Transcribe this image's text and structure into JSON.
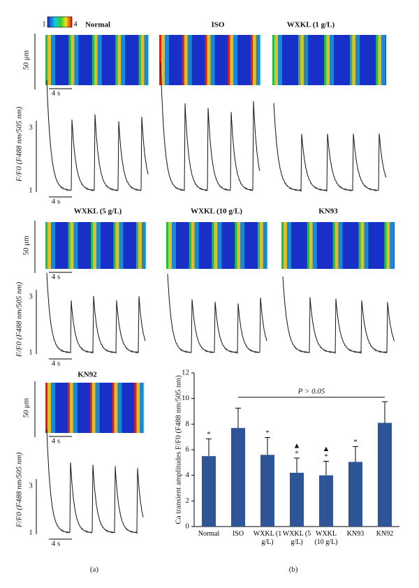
{
  "panel_a": {
    "label": "(a)",
    "colorbar": {
      "min": "1",
      "max": "4"
    },
    "scale_length": "50 μm",
    "scale_time": "4 s",
    "trace_y_label": "F/F0 (F488 nm/505 nm)",
    "trace_ticks": [
      "3",
      "1"
    ],
    "groups": [
      {
        "title": "Normal"
      },
      {
        "title": "ISO"
      },
      {
        "title": "WXKL (1 g/L)"
      },
      {
        "title": "WXKL (5 g/L)"
      },
      {
        "title": "WXKL (10 g/L)"
      },
      {
        "title": "KN93"
      },
      {
        "title": "KN92"
      }
    ]
  },
  "chart_data": {
    "type": "bar",
    "label": "(b)",
    "y_label": "Ca transient amplitudes F/F0 (F488 nm/505 nm)",
    "categories": [
      "Normal",
      "ISO",
      "WXKL (1 g/L)",
      "WXKL (5 g/L)",
      "WXKL (10 g/L)",
      "KN93",
      "KN92"
    ],
    "values": [
      5.5,
      7.7,
      5.6,
      4.2,
      4.0,
      5.05,
      8.1
    ],
    "errors": [
      1.35,
      1.55,
      1.35,
      1.15,
      1.1,
      1.2,
      1.65
    ],
    "symbols": [
      [
        "*"
      ],
      [],
      [
        "*"
      ],
      [
        "▲",
        "*"
      ],
      [
        "▲",
        "*"
      ],
      [
        "*"
      ],
      []
    ],
    "annotation": "P > 0.05",
    "color": "#2e5597",
    "ylim": [
      0,
      12
    ],
    "yticks": [
      0,
      2,
      4,
      6,
      8,
      10,
      12
    ]
  }
}
